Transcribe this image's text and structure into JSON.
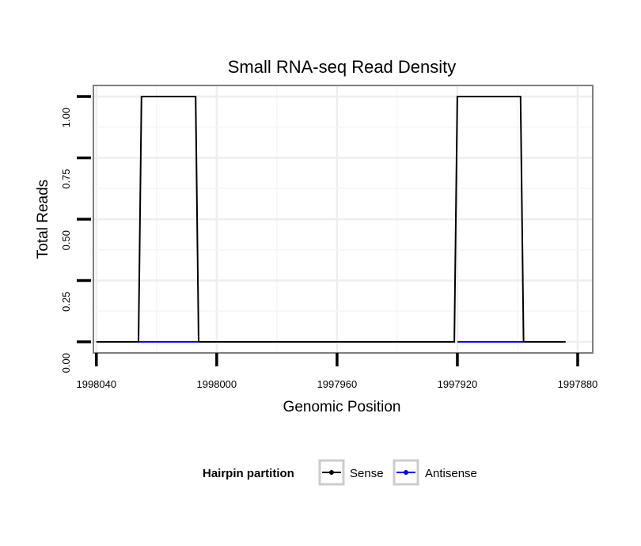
{
  "chart_data": {
    "type": "line",
    "title": "Small RNA-seq Read Density",
    "xlabel": "Genomic Position",
    "ylabel": "Total Reads",
    "x_reversed": true,
    "xlim": [
      1998041,
      1997875
    ],
    "ylim": [
      -0.045,
      1.045
    ],
    "x_ticks": [
      1998040,
      1998000,
      1997960,
      1997920,
      1997880
    ],
    "x_tick_labels": [
      "1998040",
      "1998000",
      "1997960",
      "1997920",
      "1997880"
    ],
    "y_ticks": [
      0,
      0.25,
      0.5,
      0.75,
      1
    ],
    "y_tick_labels": [
      "0.00",
      "0.25",
      "0.50",
      "0.75",
      "1.00"
    ],
    "grid": true,
    "legend": {
      "title": "Hairpin partition",
      "position": "bottom",
      "entries": [
        {
          "name": "Sense",
          "color": "#000000"
        },
        {
          "name": "Antisense",
          "color": "#0000ff"
        }
      ]
    },
    "series": [
      {
        "name": "Sense",
        "color": "#000000",
        "x": [
          1998040,
          1998026,
          1998025,
          1998007,
          1998006,
          1997921,
          1997920,
          1997899,
          1997898,
          1997884
        ],
        "y": [
          0,
          0,
          1,
          1,
          0,
          0,
          1,
          1,
          0,
          0
        ]
      },
      {
        "name": "Antisense",
        "color": "#0000ff",
        "x": [
          1998026,
          1998006,
          1997920,
          1997898
        ],
        "y": [
          0,
          0,
          0,
          0
        ],
        "segments": [
          [
            0,
            1
          ],
          [
            2,
            3
          ]
        ]
      }
    ]
  }
}
